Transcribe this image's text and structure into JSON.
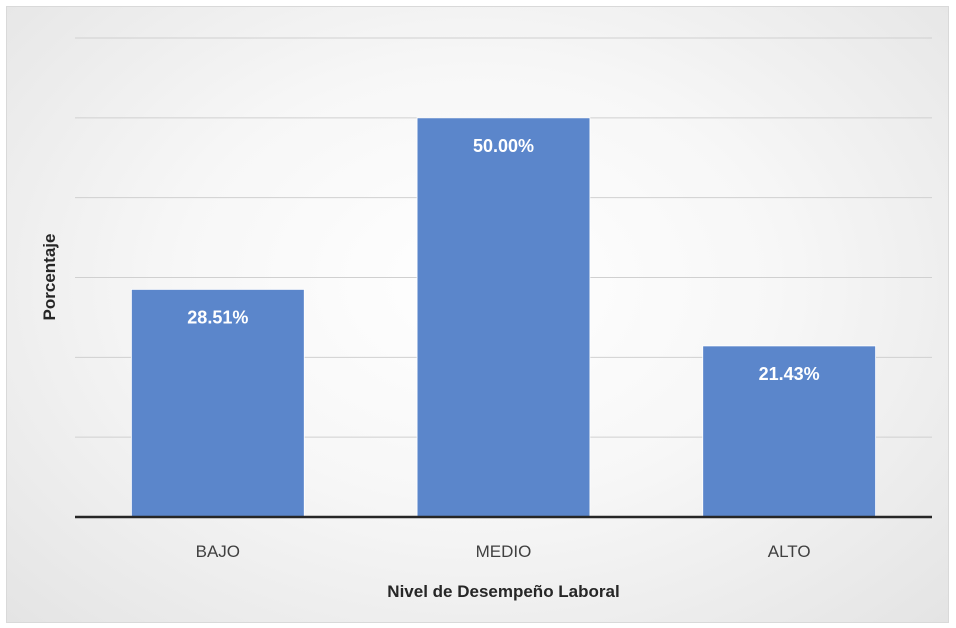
{
  "chart_data": {
    "type": "bar",
    "title": "",
    "categories": [
      "BAJO",
      "MEDIO",
      "ALTO"
    ],
    "values": [
      28.51,
      50.0,
      21.43
    ],
    "data_labels": [
      "28.51%",
      "50.00%",
      "21.43%"
    ],
    "xlabel": "Nivel de Desempeño Laboral",
    "ylabel": "Porcentaje",
    "ylim": [
      0,
      60
    ],
    "gridline_step": 10,
    "grid": true,
    "legend": "none",
    "bar_color": "#5b86cb",
    "axis_color": "#262626"
  }
}
